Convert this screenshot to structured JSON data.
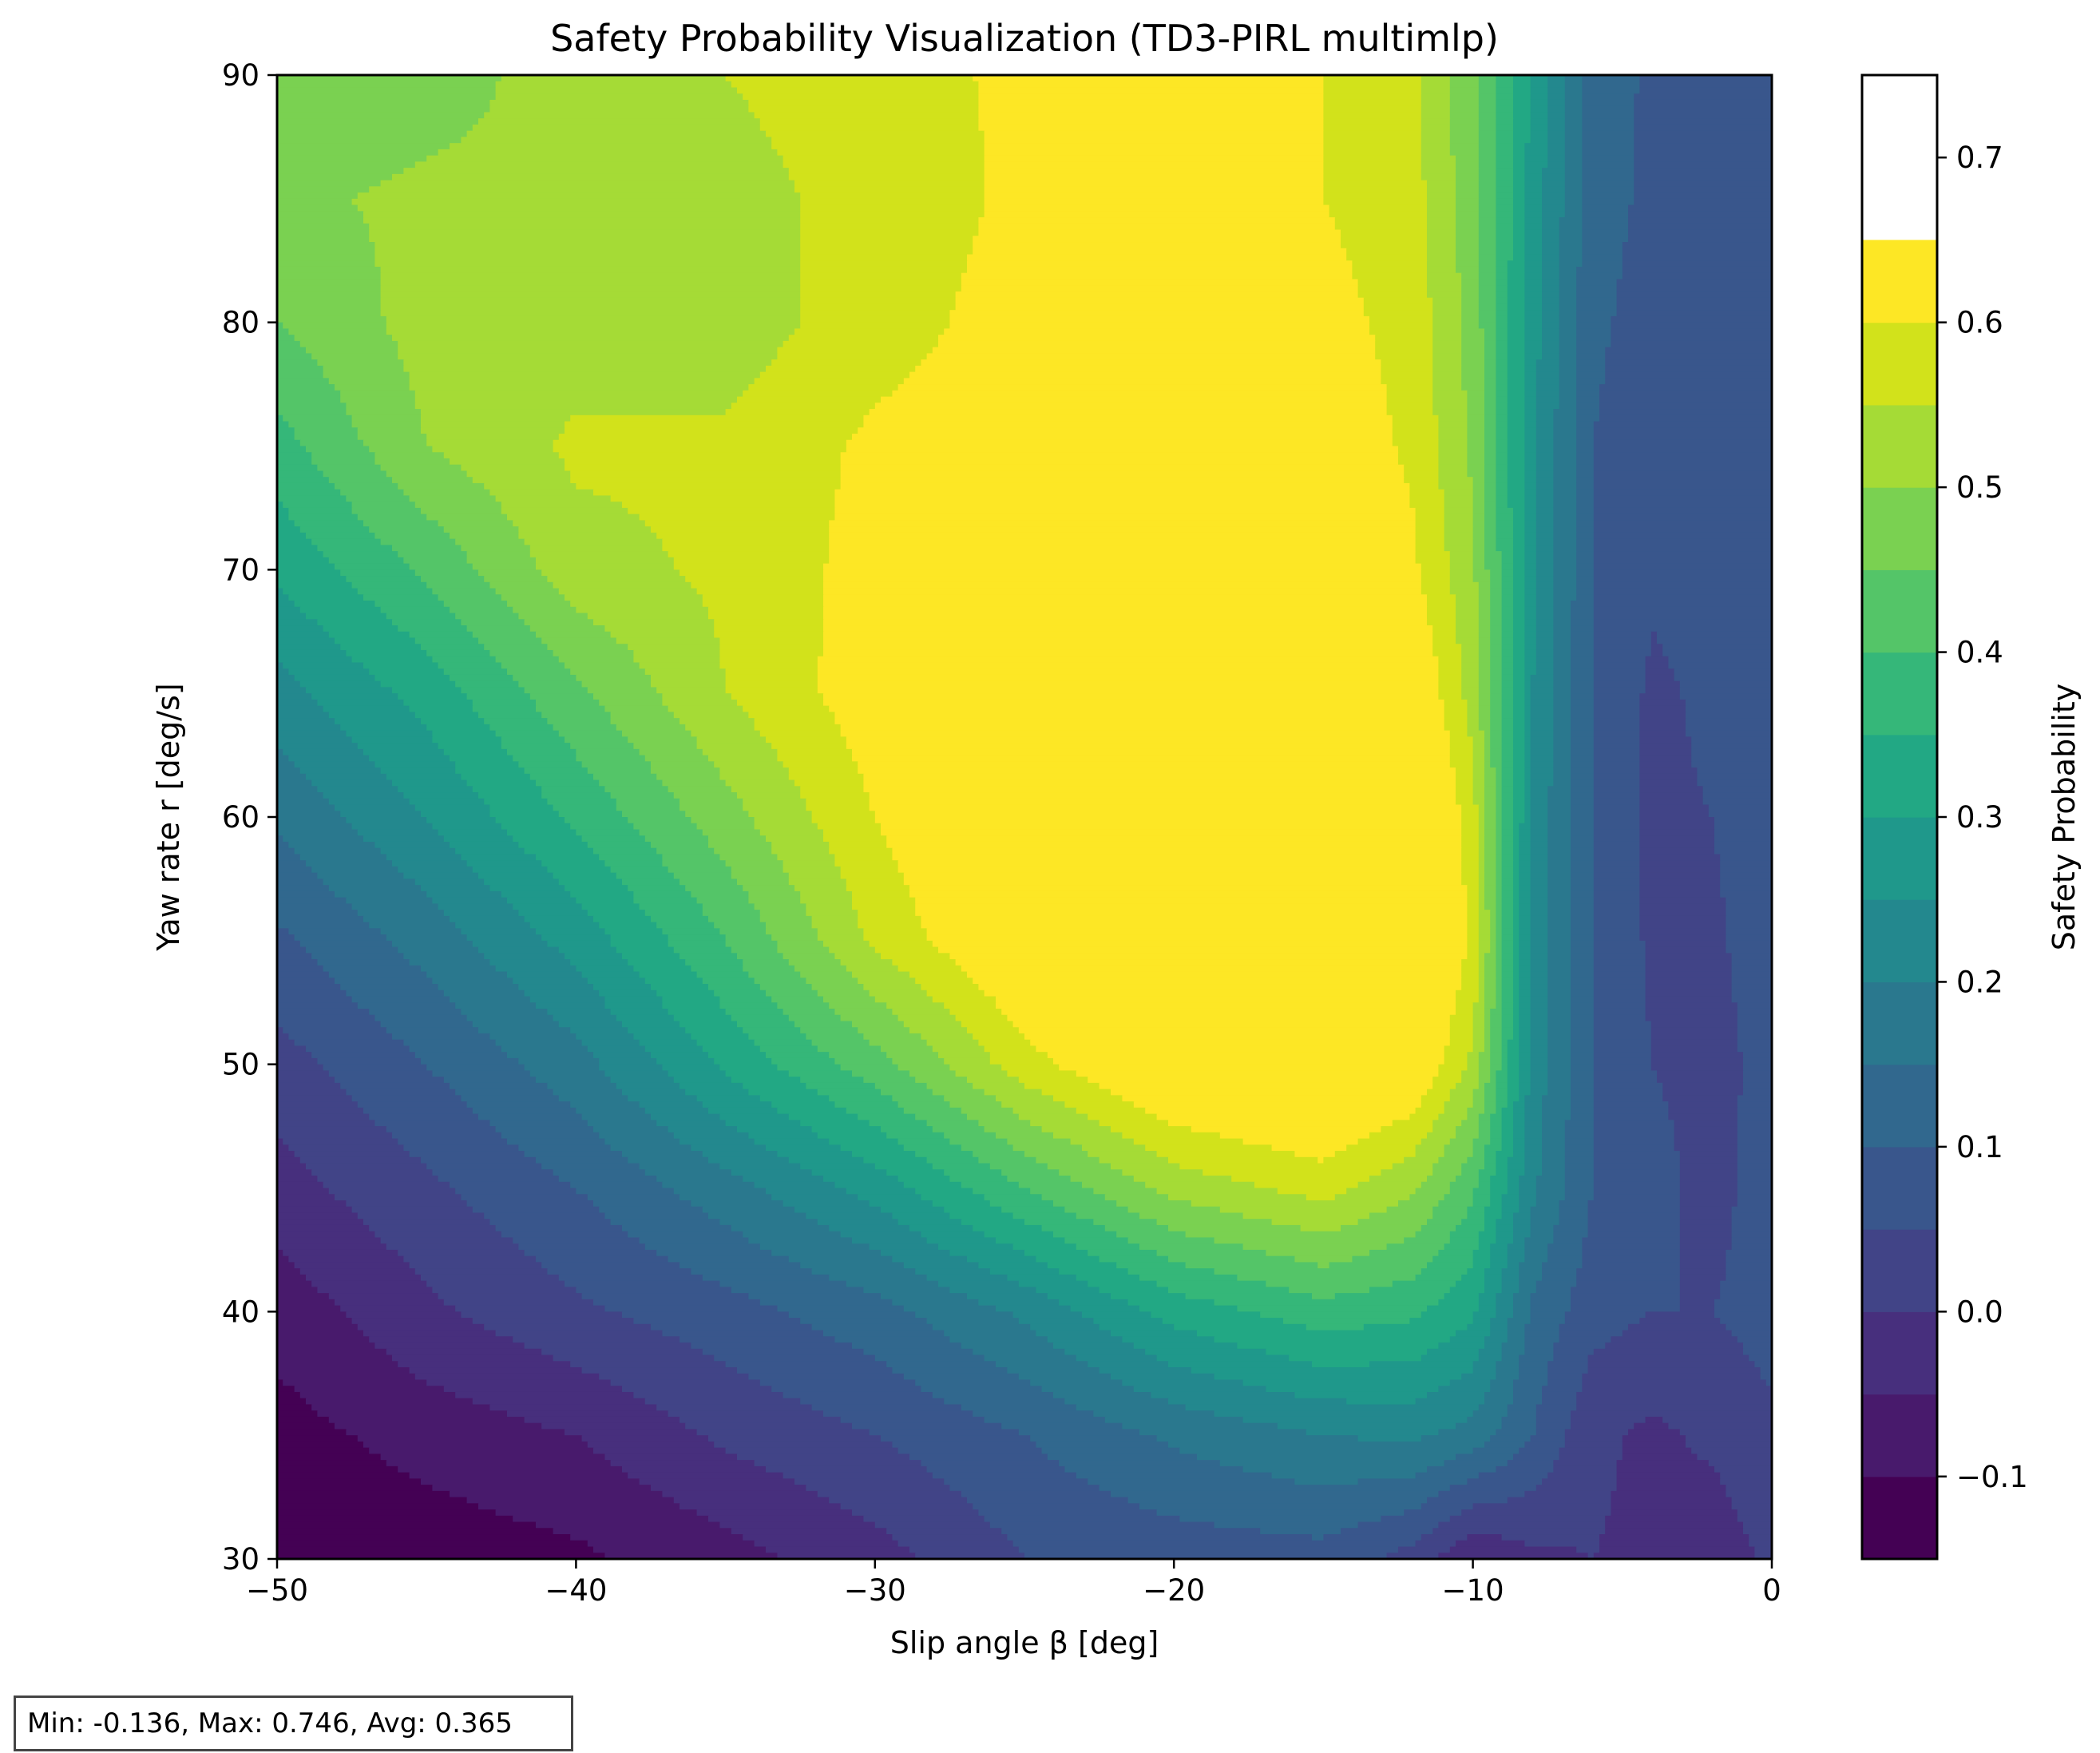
{
  "chart_data": {
    "type": "heatmap",
    "subtype": "filled-contour",
    "title": "Safety Probability Visualization (TD3-PIRL multimlp)",
    "xlabel": "Slip angle β [deg]",
    "ylabel": "Yaw rate r [deg/s]",
    "colorbar_label": "Safety Probability",
    "colormap": "viridis",
    "xlim": [
      -50,
      0
    ],
    "ylim": [
      30,
      90
    ],
    "x_ticks": [
      -50,
      -40,
      -30,
      -20,
      -10,
      0
    ],
    "x_tick_labels": [
      "−50",
      "−40",
      "−30",
      "−20",
      "−10",
      "0"
    ],
    "y_ticks": [
      30,
      40,
      50,
      60,
      70,
      80,
      90
    ],
    "y_tick_labels": [
      "30",
      "40",
      "50",
      "60",
      "70",
      "80",
      "90"
    ],
    "levels": [
      -0.15,
      -0.1,
      -0.05,
      0.0,
      0.05,
      0.1,
      0.15,
      0.2,
      0.25,
      0.3,
      0.35,
      0.4,
      0.45,
      0.5,
      0.55,
      0.6,
      0.65,
      0.7,
      0.75
    ],
    "colorbar_ticks": [
      -0.1,
      0.0,
      0.1,
      0.2,
      0.3,
      0.4,
      0.5,
      0.6,
      0.7
    ],
    "colorbar_tick_labels": [
      "−0.1",
      "0.0",
      "0.1",
      "0.2",
      "0.3",
      "0.4",
      "0.5",
      "0.6",
      "0.7"
    ],
    "band_colors": [
      "#440154",
      "#481a6c",
      "#472f7d",
      "#414487",
      "#39568c",
      "#31688e",
      "#2a788e",
      "#23888e",
      "#1f988b",
      "#22a884",
      "#35b779",
      "#54c568",
      "#7ad151",
      "#a5db36",
      "#d2e21b",
      "#fde725"
    ],
    "x": [
      -50,
      -45,
      -40,
      -35,
      -30,
      -25,
      -20,
      -15,
      -12,
      -10,
      -8,
      -6,
      -4,
      -2,
      0
    ],
    "y": [
      30,
      35,
      40,
      45,
      50,
      55,
      60,
      65,
      70,
      75,
      80,
      85,
      90
    ],
    "z": [
      [
        -0.14,
        -0.13,
        -0.11,
        -0.07,
        -0.02,
        0.05,
        0.07,
        0.08,
        0.03,
        -0.05,
        -0.01,
        0.0,
        -0.01,
        -0.03,
        0.01
      ],
      [
        -0.12,
        -0.08,
        -0.05,
        0.01,
        0.05,
        0.1,
        0.16,
        0.2,
        0.21,
        0.18,
        0.1,
        0.01,
        -0.01,
        0.01,
        0.04
      ],
      [
        -0.08,
        -0.01,
        0.04,
        0.08,
        0.13,
        0.21,
        0.32,
        0.38,
        0.36,
        0.31,
        0.14,
        0.07,
        0.05,
        0.05,
        0.07
      ],
      [
        -0.02,
        0.04,
        0.1,
        0.18,
        0.27,
        0.4,
        0.52,
        0.57,
        0.51,
        0.41,
        0.21,
        0.1,
        0.07,
        0.03,
        0.08
      ],
      [
        0.03,
        0.1,
        0.18,
        0.31,
        0.43,
        0.58,
        0.68,
        0.71,
        0.66,
        0.54,
        0.23,
        0.1,
        0.05,
        0.03,
        0.07
      ],
      [
        0.09,
        0.17,
        0.27,
        0.4,
        0.56,
        0.67,
        0.73,
        0.72,
        0.71,
        0.59,
        0.23,
        0.1,
        0.04,
        0.04,
        0.08
      ],
      [
        0.16,
        0.25,
        0.36,
        0.48,
        0.6,
        0.7,
        0.73,
        0.73,
        0.71,
        0.57,
        0.24,
        0.1,
        0.04,
        0.05,
        0.08
      ],
      [
        0.23,
        0.32,
        0.44,
        0.55,
        0.63,
        0.68,
        0.71,
        0.7,
        0.66,
        0.53,
        0.25,
        0.1,
        0.04,
        0.06,
        0.08
      ],
      [
        0.31,
        0.41,
        0.53,
        0.56,
        0.62,
        0.66,
        0.67,
        0.67,
        0.61,
        0.51,
        0.26,
        0.1,
        0.06,
        0.07,
        0.08
      ],
      [
        0.38,
        0.5,
        0.56,
        0.56,
        0.61,
        0.63,
        0.65,
        0.64,
        0.59,
        0.49,
        0.26,
        0.1,
        0.07,
        0.08,
        0.08
      ],
      [
        0.45,
        0.52,
        0.52,
        0.52,
        0.58,
        0.62,
        0.63,
        0.62,
        0.58,
        0.48,
        0.27,
        0.11,
        0.08,
        0.08,
        0.09
      ],
      [
        0.49,
        0.51,
        0.51,
        0.53,
        0.57,
        0.61,
        0.62,
        0.6,
        0.57,
        0.47,
        0.28,
        0.12,
        0.09,
        0.09,
        0.09
      ],
      [
        0.46,
        0.48,
        0.52,
        0.55,
        0.58,
        0.61,
        0.62,
        0.6,
        0.56,
        0.46,
        0.29,
        0.13,
        0.09,
        0.09,
        0.09
      ]
    ],
    "stats": {
      "min": -0.136,
      "max": 0.746,
      "avg": 0.365
    },
    "grid": false
  },
  "stats_text": "Min: -0.136, Max: 0.746, Avg: 0.365"
}
